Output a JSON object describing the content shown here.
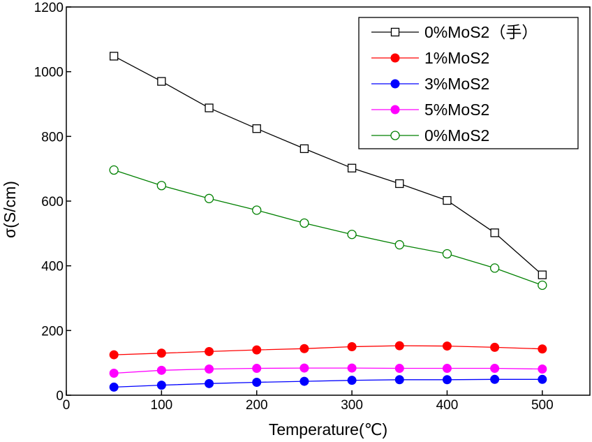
{
  "chart_data": {
    "type": "line",
    "title": "",
    "xlabel": "Temperature(℃)",
    "ylabel": "σ(S/cm)",
    "xlim": [
      0,
      550
    ],
    "ylim": [
      0,
      1200
    ],
    "xticks": [
      0,
      100,
      200,
      300,
      400,
      500
    ],
    "yticks": [
      0,
      200,
      400,
      600,
      800,
      1000,
      1200
    ],
    "xtick_labels": [
      "0",
      "100",
      "200",
      "300",
      "400",
      "500"
    ],
    "ytick_labels": [
      "0",
      "200",
      "400",
      "600",
      "800",
      "1000",
      "1200"
    ],
    "legend_position": "top-right",
    "grid": false,
    "x": [
      50,
      100,
      150,
      200,
      250,
      300,
      350,
      400,
      450,
      500
    ],
    "series": [
      {
        "name": "0%MoS2（手）",
        "color": "#000000",
        "marker": "open-square",
        "values": [
          1048,
          970,
          888,
          824,
          762,
          702,
          654,
          602,
          502,
          372
        ]
      },
      {
        "name": "1%MoS2",
        "color": "#ff0000",
        "marker": "filled-circle",
        "values": [
          125,
          130,
          135,
          140,
          144,
          150,
          153,
          152,
          148,
          143
        ]
      },
      {
        "name": "3%MoS2",
        "color": "#0000ff",
        "marker": "filled-circle",
        "values": [
          25,
          31,
          36,
          40,
          43,
          46,
          48,
          48,
          49,
          49
        ]
      },
      {
        "name": "5%MoS2",
        "color": "#ff00ff",
        "marker": "filled-circle",
        "values": [
          68,
          77,
          81,
          83,
          84,
          84,
          83,
          83,
          83,
          81
        ]
      },
      {
        "name": "0%MoS2",
        "color": "#008000",
        "marker": "open-circle",
        "values": [
          696,
          648,
          608,
          572,
          532,
          497,
          465,
          437,
          393,
          340
        ]
      }
    ]
  }
}
